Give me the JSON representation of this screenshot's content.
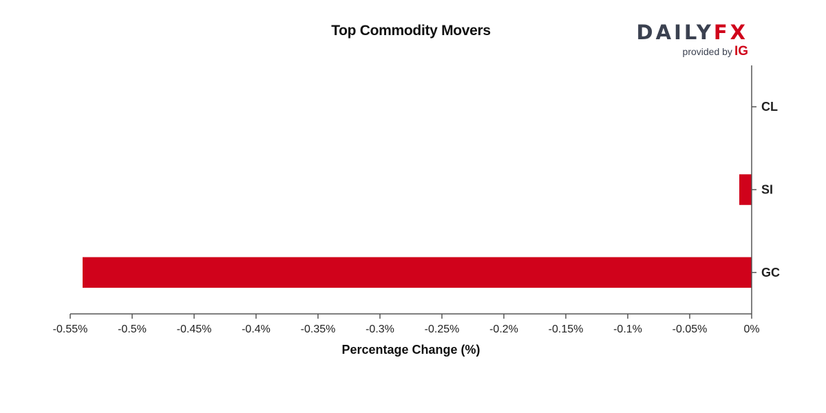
{
  "chart_data": {
    "type": "bar",
    "orientation": "horizontal",
    "title": "Top Commodity Movers",
    "xlabel": "Percentage Change (%)",
    "ylabel": "",
    "categories": [
      "CL",
      "SI",
      "GC"
    ],
    "values": [
      0.0,
      -0.01,
      -0.54
    ],
    "xlim": [
      -0.55,
      0
    ],
    "x_ticks": [
      -0.55,
      -0.5,
      -0.45,
      -0.4,
      -0.35,
      -0.3,
      -0.25,
      -0.2,
      -0.15,
      -0.1,
      -0.05,
      0
    ],
    "x_tick_labels": [
      "-0.55%",
      "-0.5%",
      "-0.45%",
      "-0.4%",
      "-0.35%",
      "-0.3%",
      "-0.25%",
      "-0.2%",
      "-0.15%",
      "-0.1%",
      "-0.05%",
      "0%"
    ],
    "bar_color": "#d0021b",
    "axis_color": "#555555",
    "grid": false,
    "y_axis_side": "right"
  },
  "branding": {
    "word_part1": "DAILY",
    "word_part2": "FX",
    "provided_by": "provided by",
    "ig": "IG",
    "dark_color": "#3b4150",
    "accent_color": "#d0021b"
  }
}
